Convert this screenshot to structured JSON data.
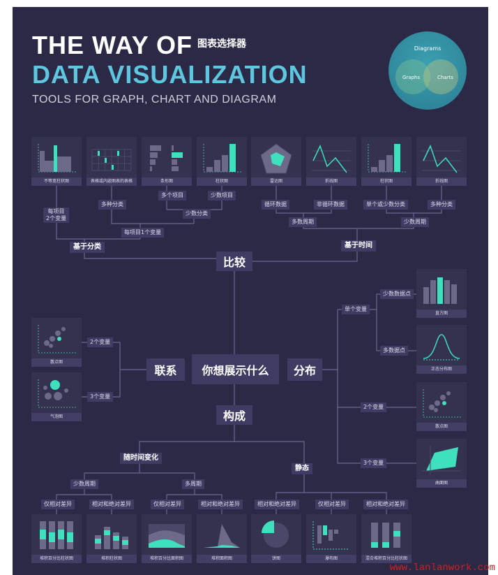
{
  "header": {
    "line1": "THE WAY OF",
    "line1_cn": "图表选择器",
    "line2": "DATA VISUALIZATION",
    "subtitle": "TOOLS FOR GRAPH, CHART AND DIAGRAM"
  },
  "venn": {
    "outer": "Diagrams",
    "left": "Graphs",
    "right": "Charts"
  },
  "colors": {
    "background": "#2b2946",
    "box": "#3f3c63",
    "accent": "#3ee0bd",
    "title_blue": "#5ec6df"
  },
  "center": {
    "question": "你想展示什么",
    "compare": "比较",
    "relation": "联系",
    "distribution": "分布",
    "composition": "构成"
  },
  "compare": {
    "by_category": "基于分类",
    "by_time": "基于时间",
    "two_vars": "每项目\n2个变量",
    "one_var": "每项目1个变量",
    "many_cat": "多种分类",
    "few_cat": "少数分类",
    "many_items": "多个项目",
    "few_items": "少数项目",
    "many_periods": "多数周期",
    "few_periods": "少数周期",
    "cyclic": "循环数据",
    "acyclic": "非循环数据",
    "single_few_cat": "单个或少数分类",
    "many_cat2": "多种分类"
  },
  "relation": {
    "two": "2个变量",
    "three": "3个变量"
  },
  "distribution": {
    "single": "单个变量",
    "few_points": "少数数据点",
    "many_points": "多数据点",
    "two": "2个变量",
    "three": "3个变量"
  },
  "composition": {
    "over_time": "随时间变化",
    "static": "静态",
    "few_periods": "少数周期",
    "many_periods": "多周期",
    "leaves": [
      "仅相对差异",
      "相对和绝对差异",
      "仅相对差异",
      "相对和绝对差异",
      "相对和绝对差异",
      "仅相对差异",
      "相对和绝对差异"
    ]
  },
  "cards": [
    {
      "label": "不等宽柱状图",
      "icon": "variable-width-bar"
    },
    {
      "label": "表格或内嵌图表的表格",
      "icon": "table"
    },
    {
      "label": "条形图",
      "icon": "bar-horizontal"
    },
    {
      "label": "柱状图",
      "icon": "column"
    },
    {
      "label": "雷达图",
      "icon": "radar"
    },
    {
      "label": "折线图",
      "icon": "line"
    },
    {
      "label": "柱状图",
      "icon": "column"
    },
    {
      "label": "折线图",
      "icon": "line"
    },
    {
      "label": "散点图",
      "icon": "scatter"
    },
    {
      "label": "气泡图",
      "icon": "bubble"
    },
    {
      "label": "直方图",
      "icon": "histogram"
    },
    {
      "label": "正态分布图",
      "icon": "normal"
    },
    {
      "label": "散点图",
      "icon": "scatter"
    },
    {
      "label": "曲面图",
      "icon": "surface"
    },
    {
      "label": "堆积百分比柱状图",
      "icon": "stacked-pct-column"
    },
    {
      "label": "堆积柱状图",
      "icon": "stacked-column"
    },
    {
      "label": "堆积百分比面积图",
      "icon": "stacked-pct-area"
    },
    {
      "label": "堆积面积图",
      "icon": "stacked-area"
    },
    {
      "label": "饼图",
      "icon": "pie"
    },
    {
      "label": "瀑布图",
      "icon": "waterfall"
    },
    {
      "label": "混合堆积百分比柱状图",
      "icon": "mixed-stacked-pct"
    }
  ],
  "watermark": "www.lanlanwork.com"
}
